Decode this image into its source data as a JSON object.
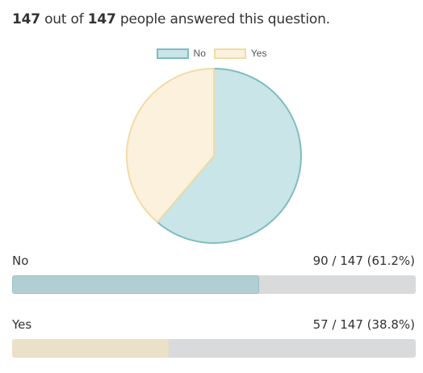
{
  "summary": {
    "answered": "147",
    "out_of_text": "out of",
    "total": "147",
    "suffix": "people answered this question."
  },
  "colors": {
    "no_fill": "#c9e5e7",
    "no_stroke": "#7fbdc1",
    "yes_fill": "#fbf1dd",
    "yes_stroke": "#f1dba8",
    "no_bar": "#b1ced2",
    "no_bar_border": "#9cc0c5",
    "yes_bar": "#ebe0c8"
  },
  "chart_data": {
    "type": "pie",
    "title": "",
    "legend_position": "top",
    "categories": [
      "No",
      "Yes"
    ],
    "values": [
      90,
      57
    ],
    "total": 147,
    "percent": [
      61.2,
      38.8
    ]
  },
  "results": [
    {
      "label": "No",
      "value_text": "90 / 147 (61.2%)",
      "fraction": 0.612
    },
    {
      "label": "Yes",
      "value_text": "57 / 147 (38.8%)",
      "fraction": 0.388
    }
  ]
}
